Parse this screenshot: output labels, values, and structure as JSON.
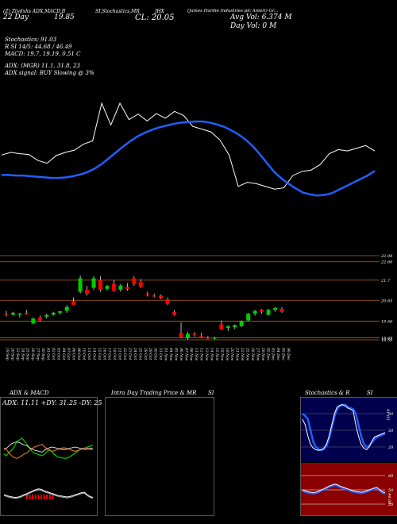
{
  "header": {
    "line1_left": "(Z) Ztvdxhs ADX,MACD,B",
    "line1_mid": "SI,Stochastics,MR",
    "line1_right": "(James Hardie Industries plc Ameri) Gr...",
    "line1_ticker": "JHX",
    "line2_left": "22 Day",
    "line2_left_value": "19.85",
    "cl_label": "CL: 20.05",
    "avg_vol": "Avg Vol: 6.374  M",
    "day_vol": "Day Vol: 0   M"
  },
  "indicators": {
    "stochastics": "Stochastics: 91.03",
    "r_si": "R                    SI 14/5: 44.68 / 46.49",
    "macd": "MACD: 19.7, 19.19, 0.51 C",
    "adx": "ADX:                                (MGR) 11.1, 31.8, 23",
    "adx_signal": "ADX   signal:                         BUY Slowing @ 3%"
  },
  "price_axis": [
    "22.98",
    "22.66",
    "21.7",
    "20.65",
    "19.56",
    "18.69",
    "18.59"
  ],
  "date_labels": [
    "19 Sep",
    "20 Sep",
    "23 Sep",
    "24 Sep",
    "25 Sep",
    "26 Sep",
    "27 Sep",
    "30 Sep",
    "01 Oct",
    "02 Oct",
    "03 Oct",
    "04 Oct",
    "07 Oct",
    "08 Oct",
    "09 Oct",
    "10 Oct",
    "11 Oct",
    "14 Oct",
    "15 Oct",
    "16 Oct",
    "17 Oct",
    "18 Oct",
    "21 Oct",
    "22 Oct",
    "23 Oct",
    "24 Oct",
    "25 Oct",
    "28 Oct",
    "29 Oct",
    "30 Oct",
    "31 Oct",
    "01 Nov",
    "04 Nov",
    "05 Nov",
    "06 Nov",
    "07 Nov",
    "08 Nov",
    "11 Nov",
    "12 Nov",
    "13 Nov",
    "14 Nov",
    "15 Nov",
    "18 Nov",
    "19 Nov",
    "20 Nov",
    "21 Nov",
    "22 Nov",
    "25 Nov",
    "26 Nov",
    "27 Nov",
    "29 Nov",
    "02 Dec",
    "03 Dec",
    "04 Dec",
    "05 Dec",
    "06 Dec"
  ],
  "panels": {
    "adx_title": "ADX  & MACD",
    "adx_readout": "ADX: 11.11 +DY: 31.25 -DY: 25",
    "intraday_title": "Intra  Day Trading Price  & MR",
    "intraday_si": "SI",
    "stoch_title": "Stochastics & R",
    "stoch_si": "SI",
    "stoch_axis": [
      "80",
      "50",
      "20"
    ],
    "si_axis": [
      "80",
      "50",
      "20"
    ],
    "stoch_value": "91.03",
    "si_value": "44.68"
  },
  "colors": {
    "bull": "#00cc00",
    "bear": "#ff0000",
    "ma": "#1f5fff",
    "grid": "#b5651d",
    "si_bg": "#8b0000",
    "stoch_bg": "#00004d"
  },
  "chart_data": [
    {
      "type": "candlestick",
      "title": "",
      "ylim": [
        18.59,
        22.98
      ],
      "candles": [
        {
          "o": 19.95,
          "h": 20.1,
          "l": 19.8,
          "c": 19.9
        },
        {
          "o": 19.9,
          "h": 20.05,
          "l": 19.85,
          "c": 20.0
        },
        {
          "o": 19.9,
          "h": 20.0,
          "l": 19.75,
          "c": 19.95
        },
        {
          "o": 20.0,
          "h": 20.15,
          "l": 19.9,
          "c": 19.92
        },
        {
          "o": 19.45,
          "h": 19.75,
          "l": 19.4,
          "c": 19.7
        },
        {
          "o": 19.75,
          "h": 19.85,
          "l": 19.55,
          "c": 19.6
        },
        {
          "o": 19.8,
          "h": 19.95,
          "l": 19.7,
          "c": 19.88
        },
        {
          "o": 19.9,
          "h": 20.05,
          "l": 19.85,
          "c": 20.0
        },
        {
          "o": 20.0,
          "h": 20.1,
          "l": 19.9,
          "c": 20.08
        },
        {
          "o": 20.1,
          "h": 20.4,
          "l": 20.0,
          "c": 20.3
        },
        {
          "o": 20.6,
          "h": 20.8,
          "l": 20.4,
          "c": 20.42
        },
        {
          "o": 21.1,
          "h": 21.95,
          "l": 21.0,
          "c": 21.8
        },
        {
          "o": 21.2,
          "h": 21.4,
          "l": 20.9,
          "c": 21.0
        },
        {
          "o": 21.3,
          "h": 21.9,
          "l": 21.2,
          "c": 21.8
        },
        {
          "o": 21.7,
          "h": 21.9,
          "l": 21.1,
          "c": 21.2
        },
        {
          "o": 21.25,
          "h": 21.45,
          "l": 21.15,
          "c": 21.4
        },
        {
          "o": 21.5,
          "h": 21.7,
          "l": 21.1,
          "c": 21.15
        },
        {
          "o": 21.2,
          "h": 21.5,
          "l": 21.1,
          "c": 21.42
        },
        {
          "o": 21.35,
          "h": 21.55,
          "l": 21.15,
          "c": 21.25
        },
        {
          "o": 21.8,
          "h": 21.9,
          "l": 21.4,
          "c": 21.5
        },
        {
          "o": 21.6,
          "h": 21.75,
          "l": 21.3,
          "c": 21.35
        },
        {
          "o": 21.0,
          "h": 21.1,
          "l": 20.85,
          "c": 20.95
        },
        {
          "o": 20.9,
          "h": 21.0,
          "l": 20.8,
          "c": 20.85
        },
        {
          "o": 20.9,
          "h": 20.95,
          "l": 20.7,
          "c": 20.75
        },
        {
          "o": 20.7,
          "h": 20.8,
          "l": 20.4,
          "c": 20.45
        },
        {
          "o": 20.05,
          "h": 20.15,
          "l": 19.85,
          "c": 19.9
        },
        {
          "o": 18.95,
          "h": 19.5,
          "l": 18.7,
          "c": 18.75
        },
        {
          "o": 18.7,
          "h": 19.0,
          "l": 18.6,
          "c": 18.9
        },
        {
          "o": 18.9,
          "h": 19.0,
          "l": 18.75,
          "c": 18.85
        },
        {
          "o": 18.8,
          "h": 18.95,
          "l": 18.7,
          "c": 18.75
        },
        {
          "o": 18.7,
          "h": 18.8,
          "l": 18.62,
          "c": 18.65
        },
        {
          "o": 18.65,
          "h": 18.75,
          "l": 18.6,
          "c": 18.7
        },
        {
          "o": 19.4,
          "h": 19.6,
          "l": 19.1,
          "c": 19.15
        },
        {
          "o": 19.2,
          "h": 19.35,
          "l": 19.05,
          "c": 19.3
        },
        {
          "o": 19.25,
          "h": 19.4,
          "l": 19.15,
          "c": 19.35
        },
        {
          "o": 19.3,
          "h": 19.6,
          "l": 19.25,
          "c": 19.55
        },
        {
          "o": 19.6,
          "h": 20.0,
          "l": 19.55,
          "c": 19.95
        },
        {
          "o": 19.95,
          "h": 20.15,
          "l": 19.85,
          "c": 20.1
        },
        {
          "o": 20.15,
          "h": 20.2,
          "l": 19.95,
          "c": 20.05
        },
        {
          "o": 19.9,
          "h": 20.2,
          "l": 19.85,
          "c": 20.15
        },
        {
          "o": 20.15,
          "h": 20.3,
          "l": 20.05,
          "c": 20.25
        },
        {
          "o": 20.2,
          "h": 20.3,
          "l": 20.0,
          "c": 20.05
        }
      ],
      "moving_average": [
        19.85,
        19.85,
        19.84,
        19.84,
        19.83,
        19.82,
        19.81,
        19.8,
        19.8,
        19.81,
        19.83,
        19.86,
        19.9,
        19.96,
        20.04,
        20.14,
        20.24,
        20.34,
        20.43,
        20.51,
        20.57,
        20.62,
        20.66,
        20.69,
        20.72,
        20.74,
        20.75,
        20.76,
        20.76,
        20.74,
        20.71,
        20.67,
        20.61,
        20.54,
        20.45,
        20.34,
        20.2,
        20.05,
        19.9,
        19.79,
        19.7,
        19.62,
        19.55,
        19.52,
        19.5,
        19.51,
        19.54,
        19.6,
        19.66,
        19.72,
        19.78,
        19.84,
        19.92
      ]
    },
    {
      "type": "line",
      "title": "",
      "series": [
        {
          "values": [
            44,
            40,
            48,
            52,
            60,
            72,
            76,
            80,
            74,
            66,
            58,
            50,
            46,
            44,
            42,
            40,
            44,
            50,
            54,
            48,
            42,
            38,
            36,
            35,
            34,
            35,
            38,
            42,
            46,
            50,
            54,
            56,
            58,
            60,
            62,
            64
          ]
        },
        {
          "values": [
            58,
            54,
            46,
            40,
            36,
            34,
            36,
            40,
            44,
            46,
            52,
            56,
            60,
            62,
            64,
            66,
            60,
            56,
            52,
            50,
            52,
            54,
            56,
            58,
            58,
            56,
            54,
            52,
            50,
            52,
            54,
            56,
            58,
            56,
            54,
            55
          ]
        }
      ]
    },
    {
      "type": "line",
      "title": "",
      "series": [
        {
          "values": [
            70,
            60,
            40,
            25,
            18,
            15,
            14,
            15,
            18,
            25,
            40,
            60,
            80,
            92,
            95,
            96,
            94,
            90,
            88,
            85,
            60,
            40,
            25,
            18,
            15,
            20,
            30,
            38,
            40,
            42,
            44,
            46
          ]
        },
        {
          "values": [
            80,
            76,
            70,
            50,
            30,
            20,
            16,
            14,
            16,
            22,
            35,
            55,
            75,
            88,
            94,
            96,
            96,
            92,
            90,
            88,
            80,
            60,
            40,
            26,
            20,
            22,
            28,
            34,
            38,
            40,
            42,
            44
          ]
        }
      ]
    },
    {
      "type": "line",
      "title": "",
      "series": [
        {
          "values": [
            50,
            48,
            46,
            45,
            44,
            45,
            47,
            50,
            52,
            55,
            58,
            60,
            62,
            61,
            58,
            56,
            54,
            52,
            50,
            48,
            47,
            46,
            45,
            46,
            48,
            50,
            52,
            54,
            55,
            50,
            46,
            44
          ]
        }
      ]
    }
  ]
}
